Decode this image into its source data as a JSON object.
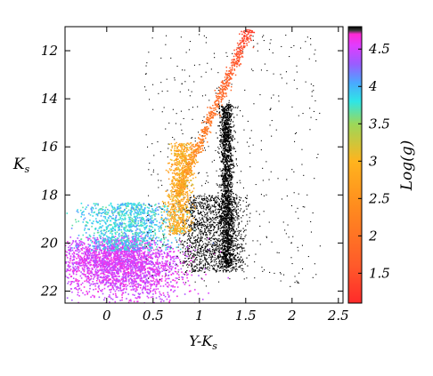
{
  "chart_data": {
    "type": "scatter",
    "title": "",
    "xlabel": "Y-K",
    "xlabel_sub": "s",
    "ylabel": "K",
    "ylabel_sub": "s",
    "xlim": [
      -0.45,
      2.55
    ],
    "ylim": [
      22.5,
      11.0
    ],
    "y_inverted": true,
    "xticks": [
      0,
      0.5,
      1,
      1.5,
      2,
      2.5
    ],
    "xtick_labels": [
      "0",
      "0.5",
      "1",
      "1.5",
      "2",
      "2.5"
    ],
    "yticks": [
      12,
      14,
      16,
      18,
      20,
      22
    ],
    "ytick_labels": [
      "12",
      "14",
      "16",
      "18",
      "20",
      "22"
    ],
    "grid": false,
    "colorbar": {
      "label": "Log(g)",
      "range": [
        1.1,
        4.8
      ],
      "ticks": [
        1.5,
        2,
        2.5,
        3,
        3.5,
        4,
        4.5
      ],
      "tick_labels": [
        "1.5",
        "2",
        "2.5",
        "3",
        "3.5",
        "4",
        "4.5"
      ],
      "colors": [
        "#ff2a2a",
        "#ff5a2a",
        "#ff8c1e",
        "#ffb41e",
        "#9bd85a",
        "#2ee6e6",
        "#4aa8ff",
        "#9a5cff",
        "#e03cff",
        "#ff2ad4",
        "#3a3a3a",
        "#000000"
      ],
      "color_stops": [
        1.1,
        1.6,
        2.4,
        3.0,
        3.5,
        3.8,
        4.05,
        4.3,
        4.55,
        4.7,
        4.75,
        4.8
      ]
    },
    "series": [
      {
        "kind": "red_giant_branch",
        "logg_range": [
          1.2,
          2.4
        ],
        "points": [
          [
            0.78,
            17.6
          ],
          [
            0.85,
            16.8
          ],
          [
            0.95,
            16.0
          ],
          [
            1.05,
            15.2
          ],
          [
            1.15,
            14.4
          ],
          [
            1.25,
            13.6
          ],
          [
            1.35,
            12.8
          ],
          [
            1.45,
            12.0
          ],
          [
            1.55,
            11.3
          ]
        ]
      },
      {
        "kind": "red_clump",
        "logg_range": [
          2.4,
          3.2
        ],
        "points": [
          [
            0.75,
            17.4
          ],
          [
            0.8,
            16.6
          ],
          [
            0.85,
            16.0
          ],
          [
            0.9,
            17.0
          ],
          [
            0.78,
            18.2
          ],
          [
            0.85,
            19.2
          ]
        ]
      },
      {
        "kind": "main_sequence_turnoff",
        "logg_range": [
          3.5,
          4.2
        ],
        "points": [
          [
            0.05,
            18.2
          ],
          [
            0.2,
            18.8
          ],
          [
            0.35,
            19.2
          ],
          [
            0.5,
            19.5
          ],
          [
            0.6,
            19.3
          ],
          [
            0.1,
            19.8
          ]
        ]
      },
      {
        "kind": "main_sequence",
        "logg_range": [
          4.3,
          4.6
        ],
        "points": [
          [
            -0.2,
            21.8
          ],
          [
            0.0,
            20.8
          ],
          [
            0.2,
            20.6
          ],
          [
            0.4,
            20.9
          ],
          [
            0.6,
            21.2
          ],
          [
            0.8,
            21.5
          ]
        ]
      },
      {
        "kind": "disk_black_column",
        "logg_range": [
          4.75,
          4.8
        ],
        "points": [
          [
            1.28,
            14.2
          ],
          [
            1.28,
            16.0
          ],
          [
            1.3,
            18.0
          ],
          [
            1.3,
            19.5
          ],
          [
            1.3,
            20.8
          ],
          [
            1.05,
            20.2
          ],
          [
            0.95,
            18.6
          ]
        ]
      }
    ]
  }
}
